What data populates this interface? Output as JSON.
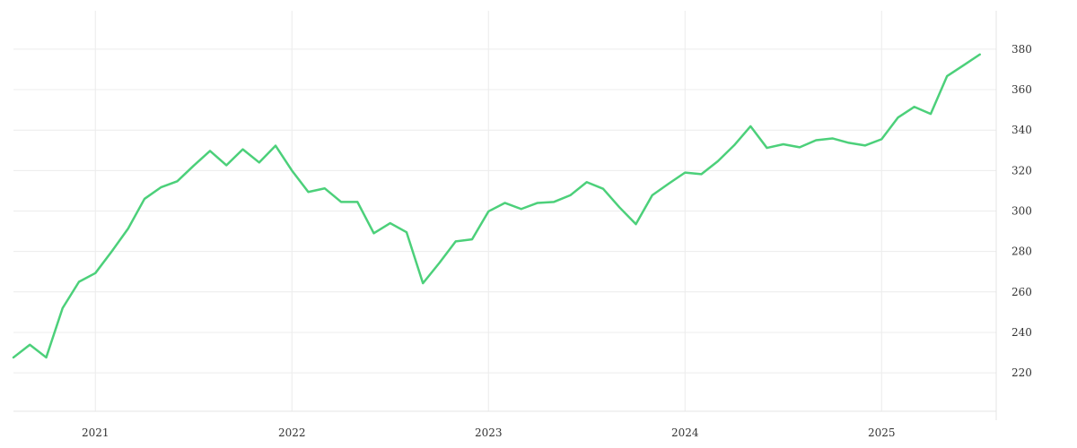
{
  "chart_data": {
    "type": "line",
    "title": "",
    "xlabel": "",
    "ylabel": "",
    "x_ticks": [
      {
        "label": "2021",
        "date": "2021-01"
      },
      {
        "label": "2022",
        "date": "2022-01"
      },
      {
        "label": "2023",
        "date": "2023-01"
      },
      {
        "label": "2024",
        "date": "2024-01"
      },
      {
        "label": "2025",
        "date": "2025-01"
      }
    ],
    "y_ticks": [
      220,
      240,
      260,
      280,
      300,
      320,
      340,
      360,
      380
    ],
    "xlim": [
      "2020-08",
      "2025-08"
    ],
    "ylim": [
      201,
      399
    ],
    "grid": true,
    "y_axis_side": "right",
    "legend": "none",
    "series": [
      {
        "color": "#4cd07a",
        "x": [
          "2020-08",
          "2020-09",
          "2020-10",
          "2020-11",
          "2020-12",
          "2021-01",
          "2021-02",
          "2021-03",
          "2021-04",
          "2021-05",
          "2021-06",
          "2021-07",
          "2021-08",
          "2021-09",
          "2021-10",
          "2021-11",
          "2021-12",
          "2022-01",
          "2022-02",
          "2022-03",
          "2022-04",
          "2022-05",
          "2022-06",
          "2022-07",
          "2022-08",
          "2022-09",
          "2022-10",
          "2022-11",
          "2022-12",
          "2023-01",
          "2023-02",
          "2023-03",
          "2023-04",
          "2023-05",
          "2023-06",
          "2023-07",
          "2023-08",
          "2023-09",
          "2023-10",
          "2023-11",
          "2023-12",
          "2024-01",
          "2024-02",
          "2024-03",
          "2024-04",
          "2024-05",
          "2024-06",
          "2024-07",
          "2024-08",
          "2024-09",
          "2024-10",
          "2024-11",
          "2024-12",
          "2025-01",
          "2025-02",
          "2025-03",
          "2025-04",
          "2025-05",
          "2025-06",
          "2025-07"
        ],
        "values": [
          227.6,
          233.9,
          227.6,
          252,
          265,
          269.3,
          280,
          291.3,
          306,
          311.7,
          314.7,
          322.4,
          329.7,
          322.6,
          330.5,
          324,
          332.3,
          320,
          309.4,
          311.2,
          304.5,
          304.5,
          289,
          294,
          289.5,
          264.3,
          274.3,
          285,
          286,
          299.8,
          304,
          301,
          304,
          304.5,
          307.8,
          314.3,
          311,
          301.8,
          293.5,
          307.8,
          313.5,
          319,
          318.2,
          324.6,
          332.5,
          341.9,
          331.2,
          333,
          331.5,
          335,
          335.9,
          333.7,
          332.4,
          335.5,
          346.2,
          351.5,
          348,
          366.7,
          372,
          377.4
        ]
      }
    ]
  }
}
